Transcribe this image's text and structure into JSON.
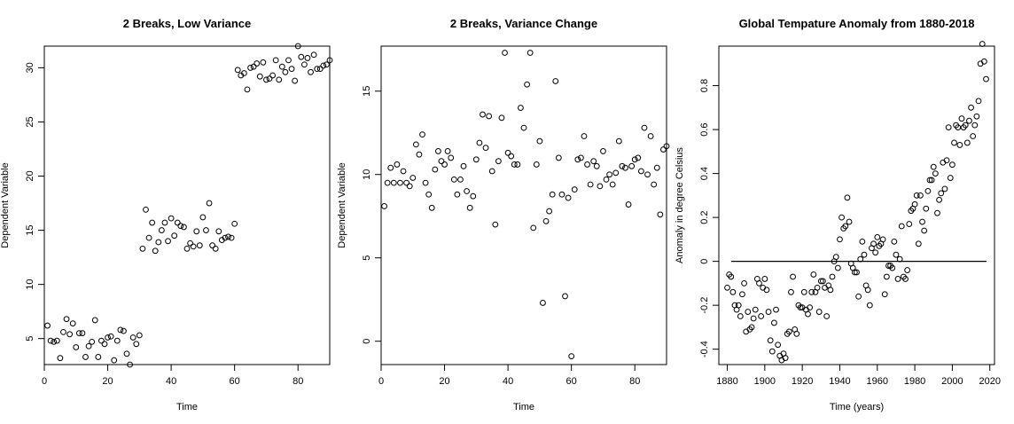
{
  "chart_data": [
    {
      "type": "scatter",
      "title": "2 Breaks, Low Variance",
      "xlabel": "Time",
      "ylabel": "Dependent Variable",
      "xlim": [
        0,
        90
      ],
      "ylim": [
        2.6,
        32
      ],
      "xticks": [
        0,
        20,
        40,
        60,
        80
      ],
      "yticks": [
        5,
        10,
        15,
        20,
        25,
        30
      ],
      "grid": false,
      "series": [
        {
          "x": [
            1,
            2,
            3,
            4,
            5,
            6,
            7,
            8,
            9,
            10,
            11,
            12,
            13,
            14,
            15,
            16,
            17,
            18,
            19,
            20,
            21,
            22,
            23,
            24,
            25,
            26,
            27,
            28,
            29,
            30,
            31,
            32,
            33,
            34,
            35,
            36,
            37,
            38,
            39,
            40,
            41,
            42,
            43,
            44,
            45,
            46,
            47,
            48,
            49,
            50,
            51,
            52,
            53,
            54,
            55,
            56,
            57,
            58,
            59,
            60,
            61,
            62,
            63,
            64,
            65,
            66,
            67,
            68,
            69,
            70,
            71,
            72,
            73,
            74,
            75,
            76,
            77,
            78,
            79,
            80,
            81,
            82,
            83,
            84,
            85,
            86,
            87,
            88,
            89,
            90
          ],
          "y": [
            6.2,
            4.8,
            4.7,
            4.8,
            3.2,
            5.6,
            6.8,
            5.4,
            6.4,
            4.2,
            5.5,
            5.5,
            3.3,
            4.3,
            4.7,
            6.7,
            3.3,
            4.8,
            4.5,
            5.1,
            5.2,
            3.0,
            4.8,
            5.8,
            5.7,
            3.6,
            2.6,
            5.1,
            4.5,
            5.3,
            13.3,
            16.9,
            14.3,
            15.7,
            13.1,
            13.9,
            15.0,
            15.7,
            14.0,
            16.1,
            14.5,
            15.7,
            15.4,
            15.3,
            13.3,
            13.8,
            13.5,
            14.9,
            13.6,
            16.2,
            15.0,
            17.5,
            13.6,
            13.3,
            14.9,
            14.1,
            14.3,
            14.4,
            14.3,
            15.6,
            29.8,
            29.3,
            29.5,
            28.0,
            30.0,
            30.1,
            30.4,
            29.2,
            30.5,
            28.9,
            29.0,
            29.3,
            30.7,
            28.9,
            30.1,
            29.6,
            30.7,
            29.9,
            28.8,
            32.0,
            31.0,
            30.3,
            30.9,
            29.6,
            31.2,
            29.9,
            29.9,
            30.2,
            30.3,
            30.7
          ]
        }
      ]
    },
    {
      "type": "scatter",
      "title": "2 Breaks, Variance Change",
      "xlabel": "Time",
      "ylabel": "Dependent Variable",
      "xlim": [
        0,
        90
      ],
      "ylim": [
        -1.4,
        17.7
      ],
      "xticks": [
        0,
        20,
        40,
        60,
        80
      ],
      "yticks": [
        0,
        5,
        10,
        15
      ],
      "grid": false,
      "series": [
        {
          "x": [
            1,
            2,
            3,
            4,
            5,
            6,
            7,
            8,
            9,
            10,
            11,
            12,
            13,
            14,
            15,
            16,
            17,
            18,
            19,
            20,
            21,
            22,
            23,
            24,
            25,
            26,
            27,
            28,
            29,
            30,
            31,
            32,
            33,
            34,
            35,
            36,
            37,
            38,
            39,
            40,
            41,
            42,
            43,
            44,
            45,
            46,
            47,
            48,
            49,
            50,
            51,
            52,
            53,
            54,
            55,
            56,
            57,
            58,
            59,
            60,
            61,
            62,
            63,
            64,
            65,
            66,
            67,
            68,
            69,
            70,
            71,
            72,
            73,
            74,
            75,
            76,
            77,
            78,
            79,
            80,
            81,
            82,
            83,
            84,
            85,
            86,
            87,
            88,
            89,
            90
          ],
          "y": [
            8.1,
            9.5,
            10.4,
            9.5,
            10.6,
            9.5,
            10.2,
            9.5,
            9.3,
            9.8,
            11.8,
            11.2,
            12.4,
            9.5,
            8.8,
            8.0,
            10.3,
            11.4,
            10.8,
            10.6,
            11.4,
            11.0,
            9.7,
            8.8,
            9.7,
            10.5,
            9.0,
            8.0,
            8.7,
            10.9,
            11.9,
            13.6,
            11.6,
            13.5,
            10.2,
            7.0,
            10.8,
            13.4,
            17.3,
            11.3,
            11.1,
            10.6,
            10.6,
            14.0,
            12.8,
            15.4,
            17.3,
            6.8,
            10.6,
            12.0,
            2.3,
            7.2,
            7.8,
            8.8,
            15.6,
            11.0,
            8.8,
            2.7,
            8.6,
            -0.9,
            9.1,
            10.9,
            11.0,
            12.3,
            10.6,
            9.4,
            10.8,
            10.5,
            9.3,
            11.4,
            9.7,
            10.0,
            9.4,
            10.1,
            12.0,
            10.5,
            10.4,
            8.2,
            10.5,
            10.9,
            11.0,
            10.2,
            12.8,
            10.0,
            12.3,
            9.4,
            10.4,
            7.6,
            11.5,
            11.7
          ]
        }
      ]
    },
    {
      "type": "scatter",
      "title": "Global Tempature Anomaly from 1880-2018",
      "xlabel": "Time (years)",
      "ylabel": "Anomaly in degree Celsius",
      "xlim": [
        1875.5,
        2022.5
      ],
      "ylim": [
        -0.47,
        0.98
      ],
      "xticks": [
        1880,
        1900,
        1920,
        1940,
        1960,
        1980,
        2000,
        2020
      ],
      "yticks": [
        -0.4,
        -0.2,
        0.0,
        0.2,
        0.4,
        0.6,
        0.8
      ],
      "grid": false,
      "reference_line_y": 0.0,
      "series": [
        {
          "x": [
            1880,
            1881,
            1882,
            1883,
            1884,
            1885,
            1886,
            1887,
            1888,
            1889,
            1890,
            1891,
            1892,
            1893,
            1894,
            1895,
            1896,
            1897,
            1898,
            1899,
            1900,
            1901,
            1902,
            1903,
            1904,
            1905,
            1906,
            1907,
            1908,
            1909,
            1910,
            1911,
            1912,
            1913,
            1914,
            1915,
            1916,
            1917,
            1918,
            1919,
            1920,
            1921,
            1922,
            1923,
            1924,
            1925,
            1926,
            1927,
            1928,
            1929,
            1930,
            1931,
            1932,
            1933,
            1934,
            1935,
            1936,
            1937,
            1938,
            1939,
            1940,
            1941,
            1942,
            1943,
            1944,
            1945,
            1946,
            1947,
            1948,
            1949,
            1950,
            1951,
            1952,
            1953,
            1954,
            1955,
            1956,
            1957,
            1958,
            1959,
            1960,
            1961,
            1962,
            1963,
            1964,
            1965,
            1966,
            1967,
            1968,
            1969,
            1970,
            1971,
            1972,
            1973,
            1974,
            1975,
            1976,
            1977,
            1978,
            1979,
            1980,
            1981,
            1982,
            1983,
            1984,
            1985,
            1986,
            1987,
            1988,
            1989,
            1990,
            1991,
            1992,
            1993,
            1994,
            1995,
            1996,
            1997,
            1998,
            1999,
            2000,
            2001,
            2002,
            2003,
            2004,
            2005,
            2006,
            2007,
            2008,
            2009,
            2010,
            2011,
            2012,
            2013,
            2014,
            2015,
            2016,
            2017,
            2018
          ],
          "y": [
            -0.12,
            -0.06,
            -0.07,
            -0.14,
            -0.2,
            -0.22,
            -0.2,
            -0.25,
            -0.15,
            -0.1,
            -0.32,
            -0.23,
            -0.31,
            -0.3,
            -0.26,
            -0.22,
            -0.08,
            -0.1,
            -0.25,
            -0.12,
            -0.08,
            -0.13,
            -0.23,
            -0.36,
            -0.41,
            -0.28,
            -0.22,
            -0.38,
            -0.43,
            -0.45,
            -0.42,
            -0.44,
            -0.33,
            -0.32,
            -0.14,
            -0.07,
            -0.31,
            -0.33,
            -0.2,
            -0.21,
            -0.21,
            -0.14,
            -0.22,
            -0.24,
            -0.21,
            -0.14,
            -0.06,
            -0.14,
            -0.12,
            -0.23,
            -0.09,
            -0.09,
            -0.12,
            -0.25,
            -0.11,
            -0.13,
            -0.07,
            0.0,
            0.02,
            -0.03,
            0.1,
            0.2,
            0.15,
            0.16,
            0.29,
            0.18,
            -0.01,
            -0.03,
            -0.05,
            -0.05,
            -0.16,
            0.01,
            0.09,
            0.03,
            -0.11,
            -0.13,
            -0.2,
            0.06,
            0.08,
            0.04,
            0.11,
            0.07,
            0.08,
            0.1,
            -0.15,
            -0.07,
            -0.02,
            -0.02,
            -0.03,
            0.09,
            0.03,
            -0.08,
            0.01,
            0.16,
            -0.07,
            -0.08,
            -0.04,
            0.17,
            0.23,
            0.24,
            0.26,
            0.3,
            0.08,
            0.3,
            0.18,
            0.14,
            0.24,
            0.32,
            0.37,
            0.37,
            0.43,
            0.4,
            0.22,
            0.28,
            0.31,
            0.45,
            0.33,
            0.46,
            0.61,
            0.38,
            0.44,
            0.54,
            0.62,
            0.61,
            0.53,
            0.65,
            0.61,
            0.62,
            0.54,
            0.64,
            0.7,
            0.57,
            0.62,
            0.66,
            0.73,
            0.9,
            0.99,
            0.91,
            0.83
          ]
        }
      ]
    }
  ]
}
